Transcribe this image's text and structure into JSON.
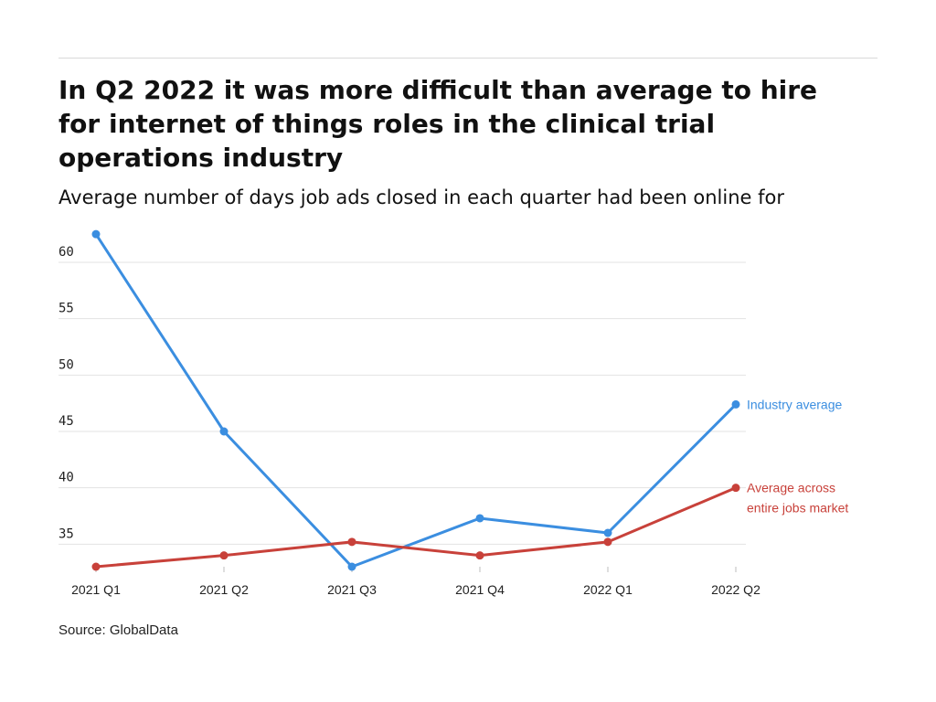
{
  "title": "In Q2 2022 it was more difficult than average to hire for internet of things roles in the clinical trial operations industry",
  "subtitle": "Average number of days job ads closed in each quarter had been online for",
  "source": "Source: GlobalData",
  "colors": {
    "industry": "#3b8ee0",
    "market": "#c8413a",
    "grid": "#e3e3e3"
  },
  "chart_data": {
    "type": "line",
    "title": "In Q2 2022 it was more difficult than average to hire for internet of things roles in the clinical trial operations industry",
    "subtitle": "Average number of days job ads closed in each quarter had been online for",
    "xlabel": "",
    "ylabel": "",
    "categories": [
      "2021 Q1",
      "2021 Q2",
      "2021 Q3",
      "2021 Q4",
      "2022 Q1",
      "2022 Q2"
    ],
    "ylim": [
      33,
      63
    ],
    "yticks": [
      35,
      40,
      45,
      50,
      55,
      60
    ],
    "grid": true,
    "legend": "direct labels at line ends",
    "series": [
      {
        "name": "Industry average",
        "label_lines": [
          "Industry average"
        ],
        "color": "#3b8ee0",
        "values": [
          62.5,
          45.0,
          33.0,
          37.3,
          36.0,
          47.4
        ]
      },
      {
        "name": "Average across entire jobs market",
        "label_lines": [
          "Average across",
          "entire jobs market"
        ],
        "color": "#c8413a",
        "values": [
          33.0,
          34.0,
          35.2,
          34.0,
          35.2,
          40.0
        ]
      }
    ]
  }
}
